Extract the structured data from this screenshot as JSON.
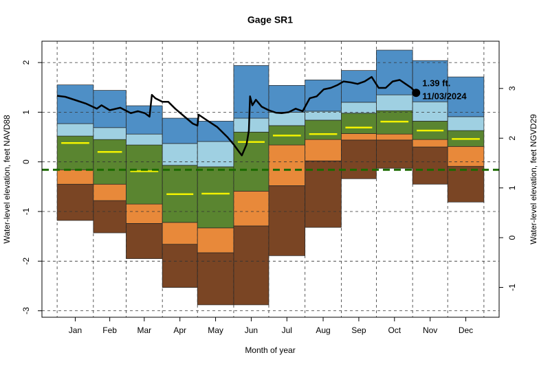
{
  "chart_data": {
    "type": "percentile-bands",
    "title": "Gage SR1",
    "x_label": "Month of year",
    "y_label": "Water-level elevation, feet NAVD88",
    "y2_label": "Water-level elevation, feet NGVD29",
    "categories": [
      "Jan",
      "Feb",
      "Mar",
      "Apr",
      "May",
      "Jun",
      "Jul",
      "Aug",
      "Sep",
      "Oct",
      "Nov",
      "Dec"
    ],
    "month_edges": [
      0,
      31,
      59,
      90,
      120,
      151,
      181,
      212,
      243,
      273,
      304,
      334,
      365
    ],
    "xlim": [
      -13,
      378
    ],
    "ylim": [
      -3.13,
      2.43
    ],
    "yticks": [
      -3,
      -2,
      -1,
      0,
      1,
      2
    ],
    "y2lim": [
      -1.6,
      3.95
    ],
    "y2ticks": [
      -1,
      0,
      1,
      2,
      3
    ],
    "grid": true,
    "levels": [
      [
        -1.18,
        -1.43,
        -1.95,
        -2.53,
        -2.88,
        -2.88,
        -1.89,
        -1.32,
        -0.34,
        -0.13,
        -0.45,
        -0.81
      ],
      [
        -0.45,
        -0.78,
        -1.24,
        -1.66,
        -1.83,
        -1.29,
        -0.48,
        0.02,
        0.44,
        0.44,
        0.3,
        -0.09
      ],
      [
        -0.16,
        -0.45,
        -0.85,
        -1.22,
        -1.33,
        -0.59,
        0.34,
        0.45,
        0.57,
        0.56,
        0.45,
        0.31
      ],
      [
        0.52,
        0.45,
        0.34,
        -0.07,
        -0.1,
        0.6,
        0.73,
        0.84,
        0.98,
        1.03,
        0.82,
        0.63
      ],
      [
        0.77,
        0.69,
        0.56,
        0.37,
        0.41,
        0.88,
        1.0,
        1.02,
        1.2,
        1.35,
        1.21,
        0.91
      ],
      [
        1.55,
        1.44,
        1.13,
        0.88,
        0.82,
        1.94,
        1.54,
        1.65,
        1.84,
        2.25,
        2.04,
        1.71
      ]
    ],
    "band_colors": [
      "#7a4524",
      "#e8893a",
      "#5a8530",
      "#9fd0e2",
      "#4e8fc6"
    ],
    "median": {
      "color": "#f2f200",
      "values": [
        0.38,
        0.2,
        -0.19,
        -0.65,
        -0.64,
        0.4,
        0.53,
        0.56,
        0.69,
        0.81,
        0.63,
        0.46
      ]
    },
    "reference_line": {
      "value": -0.16,
      "color": "#1b6a00"
    },
    "record": {
      "color": "#000000",
      "x": [
        0,
        7,
        16,
        25,
        34,
        38,
        45,
        54,
        63,
        69,
        75,
        79,
        81,
        84,
        90,
        95,
        101,
        107,
        116,
        120,
        121,
        128,
        137,
        146,
        151,
        156,
        158,
        162,
        164,
        165,
        167,
        170,
        175,
        181,
        187,
        192,
        198,
        204,
        210,
        216,
        222,
        228,
        234,
        240,
        245,
        251,
        257,
        263,
        269,
        275,
        281,
        287,
        293,
        298,
        303,
        307
      ],
      "values": [
        1.33,
        1.31,
        1.24,
        1.17,
        1.07,
        1.14,
        1.04,
        1.09,
        0.98,
        1.02,
        0.98,
        0.91,
        1.35,
        1.28,
        1.21,
        1.21,
        1.07,
        0.95,
        0.77,
        0.73,
        0.95,
        0.84,
        0.7,
        0.49,
        0.35,
        0.19,
        0.13,
        0.35,
        0.63,
        1.32,
        1.14,
        1.25,
        1.11,
        1.04,
        0.99,
        0.98,
        1.0,
        1.07,
        1.02,
        1.28,
        1.32,
        1.46,
        1.49,
        1.55,
        1.62,
        1.6,
        1.57,
        1.62,
        1.71,
        1.49,
        1.49,
        1.62,
        1.65,
        1.57,
        1.49,
        1.39
      ]
    },
    "annotation": {
      "text": "1.39 ft.",
      "date": "11/03/2024"
    }
  }
}
